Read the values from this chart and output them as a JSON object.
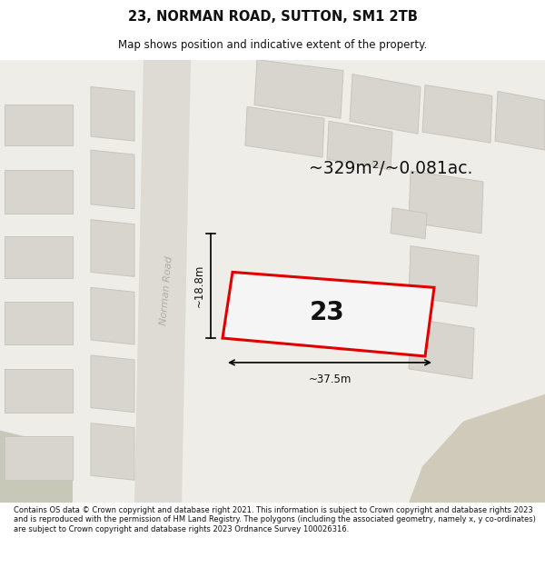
{
  "title": "23, NORMAN ROAD, SUTTON, SM1 2TB",
  "subtitle": "Map shows position and indicative extent of the property.",
  "footer": "Contains OS data © Crown copyright and database right 2021. This information is subject to Crown copyright and database rights 2023 and is reproduced with the permission of HM Land Registry. The polygons (including the associated geometry, namely x, y co-ordinates) are subject to Crown copyright and database rights 2023 Ordnance Survey 100026316.",
  "area_label": "~329m²/~0.081ac.",
  "width_label": "~37.5m",
  "height_label": "~18.8m",
  "road_label": "Norman Road",
  "number_label": "23",
  "map_bg": "#eeede8",
  "building_fill": "#d8d5cf",
  "building_edge": "#c8c5bf",
  "highlight_fill": "#f5f5f5",
  "highlight_edge": "#e00000",
  "pink_line": "#f0a0a0",
  "road_fill": "#dedad4",
  "tan_fill": "#d0cabb"
}
